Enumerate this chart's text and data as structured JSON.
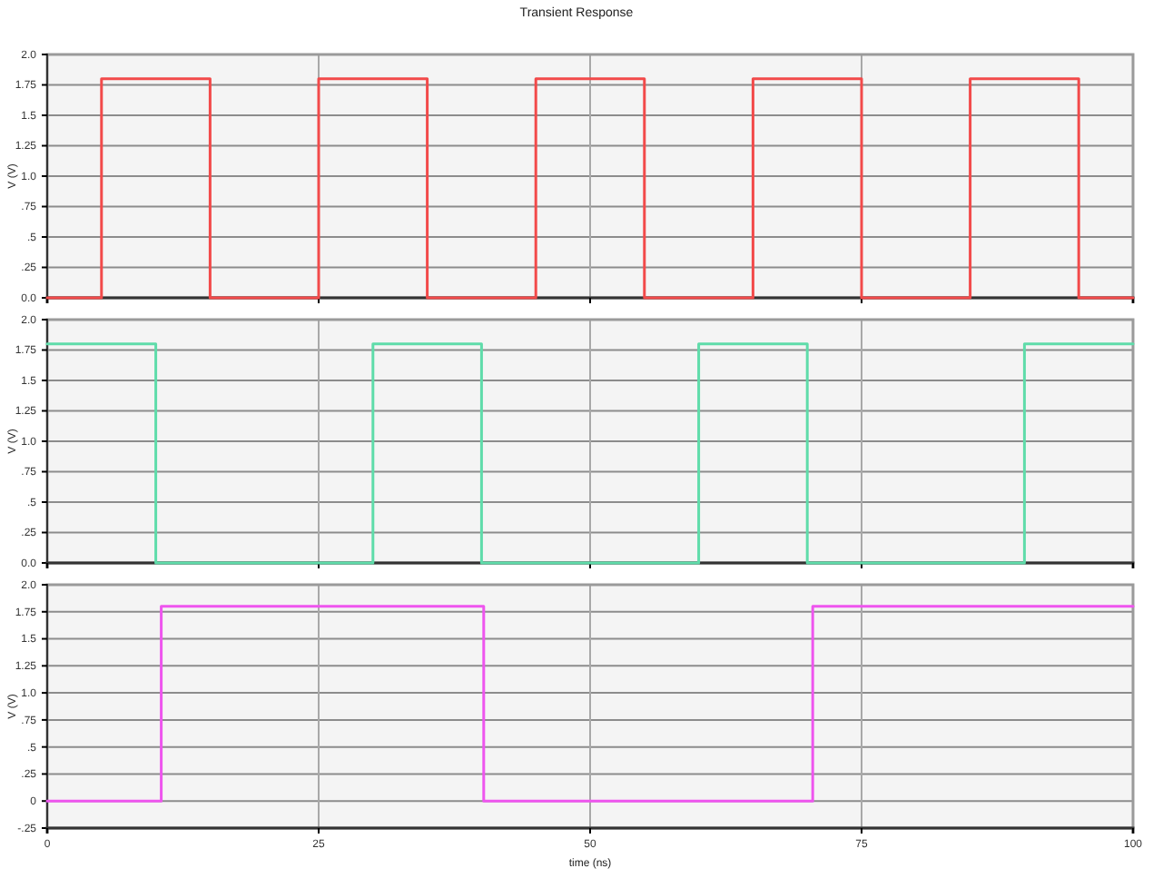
{
  "chart_data": [
    {
      "type": "step",
      "title": "Transient Response",
      "ylabel": "V (V)",
      "x": [
        0,
        5,
        15,
        25,
        35,
        45,
        55,
        65,
        75,
        85,
        95,
        100
      ],
      "series": [
        {
          "color": "#f24a4a",
          "values": [
            0,
            1.8,
            0,
            1.8,
            0,
            1.8,
            0,
            1.8,
            0,
            1.8,
            0,
            0
          ]
        }
      ],
      "xlim": [
        0,
        100
      ],
      "xticks": [
        0,
        25,
        50,
        75,
        100
      ],
      "ylim": [
        0,
        2
      ],
      "yticks": [
        {
          "value": 0,
          "label": "0.0"
        },
        {
          "value": 0.25,
          "label": ".25"
        },
        {
          "value": 0.5,
          "label": ".5"
        },
        {
          "value": 0.75,
          "label": ".75"
        },
        {
          "value": 1,
          "label": "1.0"
        },
        {
          "value": 1.25,
          "label": "1.25"
        },
        {
          "value": 1.5,
          "label": "1.5"
        },
        {
          "value": 1.75,
          "label": "1.75"
        },
        {
          "value": 2,
          "label": "2.0"
        }
      ],
      "grid": true,
      "tick_labels": "y"
    },
    {
      "type": "step",
      "ylabel": "V (V)",
      "x": [
        0,
        10,
        30,
        40,
        60,
        70,
        90,
        100
      ],
      "series": [
        {
          "color": "#5fdcaa",
          "values": [
            1.8,
            0,
            1.8,
            0,
            1.8,
            0,
            1.8,
            1.8
          ]
        }
      ],
      "xlim": [
        0,
        100
      ],
      "xticks": [
        0,
        25,
        50,
        75,
        100
      ],
      "ylim": [
        0,
        2
      ],
      "yticks": [
        {
          "value": 0,
          "label": "0.0"
        },
        {
          "value": 0.25,
          "label": ".25"
        },
        {
          "value": 0.5,
          "label": ".5"
        },
        {
          "value": 0.75,
          "label": ".75"
        },
        {
          "value": 1,
          "label": "1.0"
        },
        {
          "value": 1.25,
          "label": "1.25"
        },
        {
          "value": 1.5,
          "label": "1.5"
        },
        {
          "value": 1.75,
          "label": "1.75"
        },
        {
          "value": 2,
          "label": "2.0"
        }
      ],
      "grid": true,
      "tick_labels": "y"
    },
    {
      "type": "step",
      "xlabel": "time (ns)",
      "ylabel": "V (V)",
      "x": [
        0,
        10.5,
        40.2,
        70.5,
        100
      ],
      "series": [
        {
          "color": "#ee55ee",
          "values": [
            0,
            1.8,
            0,
            1.8,
            1.8
          ]
        }
      ],
      "xlim": [
        0,
        100
      ],
      "xticks": [
        0,
        25,
        50,
        75,
        100
      ],
      "ylim": [
        -0.25,
        2
      ],
      "yticks": [
        {
          "value": -0.25,
          "label": "-.25"
        },
        0,
        {
          "value": 0.25,
          "label": ".25"
        },
        {
          "value": 0.5,
          "label": ".5"
        },
        {
          "value": 0.75,
          "label": ".75"
        },
        {
          "value": 1,
          "label": "1.0"
        },
        {
          "value": 1.25,
          "label": "1.25"
        },
        {
          "value": 1.5,
          "label": "1.5"
        },
        {
          "value": 1.75,
          "label": "1.75"
        },
        {
          "value": 2,
          "label": "2.0"
        }
      ],
      "grid": true
    }
  ]
}
